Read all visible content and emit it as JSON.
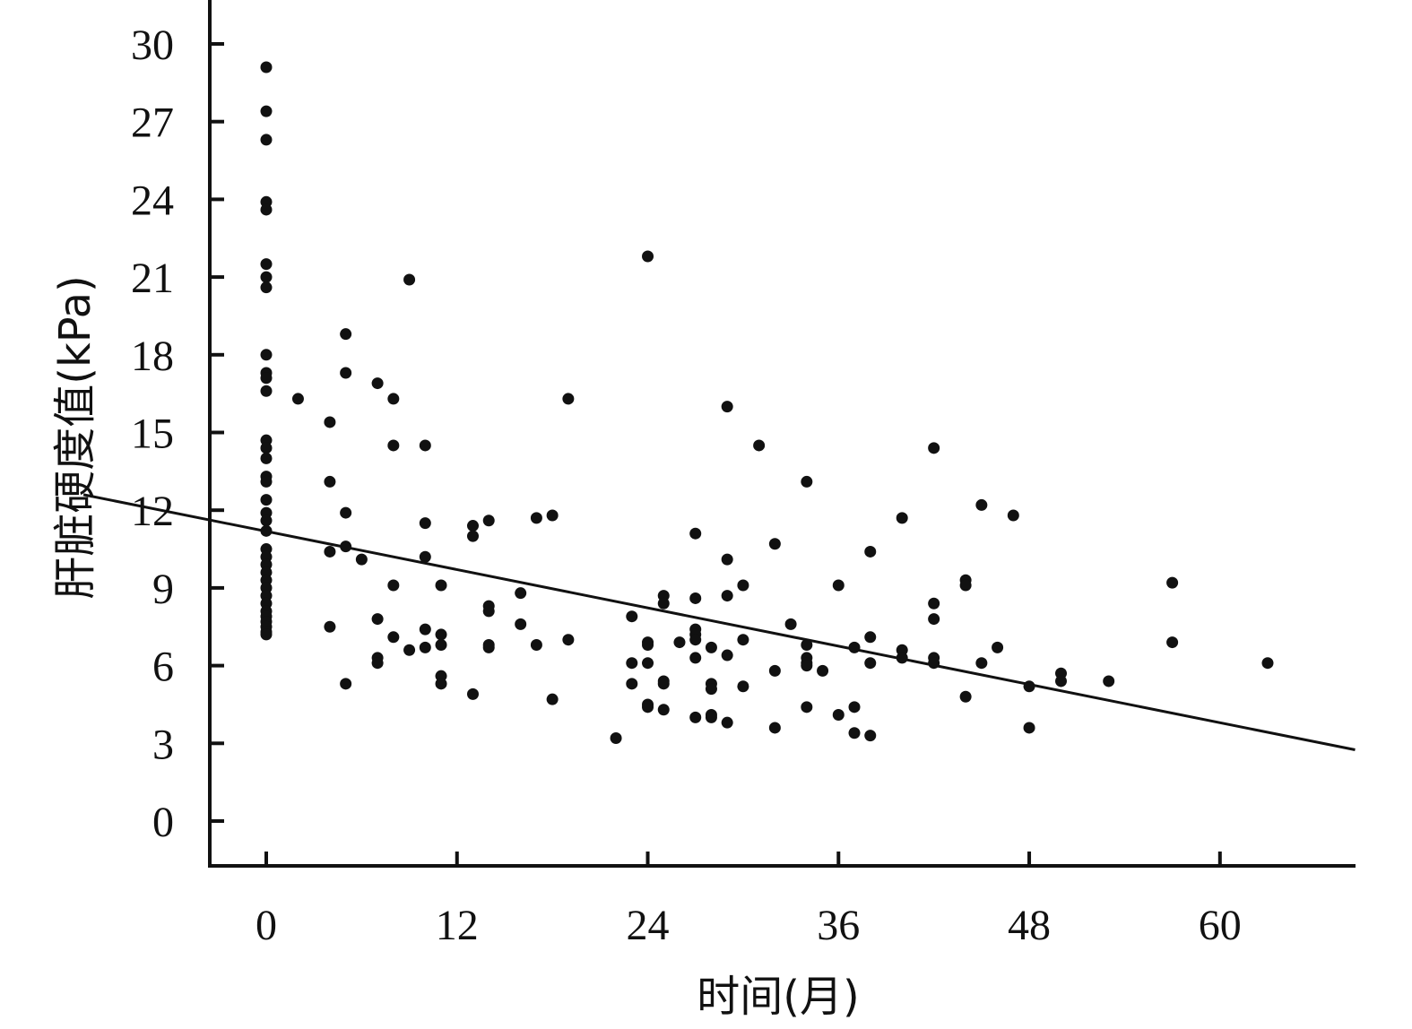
{
  "chart_data": {
    "type": "scatter",
    "xlabel": "时间(月)",
    "ylabel": "肝脏硬度值(kPa)",
    "xlim": [
      -11.5,
      68.5
    ],
    "ylim": [
      -1.5,
      31.6
    ],
    "xticks": [
      0,
      12,
      24,
      36,
      48,
      60
    ],
    "yticks": [
      0,
      3,
      6,
      9,
      12,
      15,
      18,
      21,
      24,
      27,
      30
    ],
    "grid": false,
    "legend": "none",
    "trendline": {
      "x": [
        -11.5,
        68.5
      ],
      "y": [
        12.6,
        2.75
      ]
    },
    "points": [
      [
        0,
        29.1
      ],
      [
        0,
        27.4
      ],
      [
        0,
        26.3
      ],
      [
        0,
        23.9
      ],
      [
        0,
        23.6
      ],
      [
        0,
        21.5
      ],
      [
        0,
        21.0
      ],
      [
        0,
        20.6
      ],
      [
        0,
        18.0
      ],
      [
        0,
        17.3
      ],
      [
        0,
        17.1
      ],
      [
        0,
        16.6
      ],
      [
        0,
        14.7
      ],
      [
        0,
        14.4
      ],
      [
        0,
        14.0
      ],
      [
        0,
        13.3
      ],
      [
        0,
        13.1
      ],
      [
        0,
        12.4
      ],
      [
        0,
        11.9
      ],
      [
        0,
        11.6
      ],
      [
        0,
        11.2
      ],
      [
        0,
        10.5
      ],
      [
        0,
        10.2
      ],
      [
        0,
        9.9
      ],
      [
        0,
        9.6
      ],
      [
        0,
        9.3
      ],
      [
        0,
        9.0
      ],
      [
        0,
        8.7
      ],
      [
        0,
        8.4
      ],
      [
        0,
        8.1
      ],
      [
        0,
        7.9
      ],
      [
        0,
        7.7
      ],
      [
        0,
        7.5
      ],
      [
        0,
        7.3
      ],
      [
        0,
        7.2
      ],
      [
        2,
        16.3
      ],
      [
        4,
        15.4
      ],
      [
        4,
        13.1
      ],
      [
        4,
        10.4
      ],
      [
        4,
        7.5
      ],
      [
        5,
        18.8
      ],
      [
        5,
        17.3
      ],
      [
        5,
        11.9
      ],
      [
        5,
        10.6
      ],
      [
        5,
        5.3
      ],
      [
        6,
        10.1
      ],
      [
        7,
        16.9
      ],
      [
        7,
        7.8
      ],
      [
        7,
        6.3
      ],
      [
        7,
        6.1
      ],
      [
        8,
        16.3
      ],
      [
        8,
        14.5
      ],
      [
        8,
        9.1
      ],
      [
        8,
        7.1
      ],
      [
        9,
        20.9
      ],
      [
        9,
        6.6
      ],
      [
        10,
        14.5
      ],
      [
        10,
        11.5
      ],
      [
        10,
        10.2
      ],
      [
        10,
        7.4
      ],
      [
        10,
        6.7
      ],
      [
        11,
        9.1
      ],
      [
        11,
        7.2
      ],
      [
        11,
        6.8
      ],
      [
        11,
        5.6
      ],
      [
        11,
        5.3
      ],
      [
        13,
        11.4
      ],
      [
        13,
        11.0
      ],
      [
        13,
        4.9
      ],
      [
        14,
        11.6
      ],
      [
        14,
        8.3
      ],
      [
        14,
        8.1
      ],
      [
        14,
        6.8
      ],
      [
        14,
        6.7
      ],
      [
        16,
        8.8
      ],
      [
        16,
        7.6
      ],
      [
        17,
        11.7
      ],
      [
        17,
        6.8
      ],
      [
        18,
        11.8
      ],
      [
        18,
        4.7
      ],
      [
        19,
        16.3
      ],
      [
        19,
        7.0
      ],
      [
        22,
        3.2
      ],
      [
        23,
        7.9
      ],
      [
        23,
        6.1
      ],
      [
        23,
        5.3
      ],
      [
        24,
        21.8
      ],
      [
        24,
        6.9
      ],
      [
        24,
        6.8
      ],
      [
        24,
        6.1
      ],
      [
        24,
        4.5
      ],
      [
        24,
        4.4
      ],
      [
        25,
        8.7
      ],
      [
        25,
        8.4
      ],
      [
        25,
        5.4
      ],
      [
        25,
        5.3
      ],
      [
        25,
        4.3
      ],
      [
        26,
        6.9
      ],
      [
        27,
        11.1
      ],
      [
        27,
        8.6
      ],
      [
        27,
        7.4
      ],
      [
        27,
        7.2
      ],
      [
        27,
        7.0
      ],
      [
        27,
        6.3
      ],
      [
        27,
        4.0
      ],
      [
        28,
        6.7
      ],
      [
        28,
        5.3
      ],
      [
        28,
        5.1
      ],
      [
        28,
        4.1
      ],
      [
        28,
        4.0
      ],
      [
        29,
        16.0
      ],
      [
        29,
        10.1
      ],
      [
        29,
        8.7
      ],
      [
        29,
        6.4
      ],
      [
        29,
        3.8
      ],
      [
        30,
        9.1
      ],
      [
        30,
        7.0
      ],
      [
        30,
        5.2
      ],
      [
        31,
        14.5
      ],
      [
        32,
        10.7
      ],
      [
        32,
        5.8
      ],
      [
        32,
        3.6
      ],
      [
        33,
        7.6
      ],
      [
        34,
        13.1
      ],
      [
        34,
        6.8
      ],
      [
        34,
        6.3
      ],
      [
        34,
        6.1
      ],
      [
        34,
        6.0
      ],
      [
        34,
        4.4
      ],
      [
        35,
        5.8
      ],
      [
        36,
        9.1
      ],
      [
        36,
        4.1
      ],
      [
        37,
        6.7
      ],
      [
        37,
        4.4
      ],
      [
        37,
        3.4
      ],
      [
        38,
        10.4
      ],
      [
        38,
        7.1
      ],
      [
        38,
        6.1
      ],
      [
        38,
        3.3
      ],
      [
        40,
        11.7
      ],
      [
        40,
        6.6
      ],
      [
        40,
        6.3
      ],
      [
        42,
        14.4
      ],
      [
        42,
        8.4
      ],
      [
        42,
        7.8
      ],
      [
        42,
        6.3
      ],
      [
        42,
        6.1
      ],
      [
        44,
        9.3
      ],
      [
        44,
        9.1
      ],
      [
        44,
        4.8
      ],
      [
        45,
        12.2
      ],
      [
        45,
        6.1
      ],
      [
        46,
        6.7
      ],
      [
        47,
        11.8
      ],
      [
        48,
        5.2
      ],
      [
        48,
        3.6
      ],
      [
        50,
        5.7
      ],
      [
        50,
        5.4
      ],
      [
        53,
        5.4
      ],
      [
        57,
        9.2
      ],
      [
        57,
        6.9
      ],
      [
        63,
        6.1
      ]
    ]
  },
  "labels": {
    "x_ticks": [
      "0",
      "12",
      "24",
      "36",
      "48",
      "60"
    ],
    "y_ticks": [
      "0",
      "3",
      "6",
      "9",
      "12",
      "15",
      "18",
      "21",
      "24",
      "27",
      "30"
    ],
    "x_title": "时间(月)",
    "y_title": "肝脏硬度值(kPa)"
  }
}
